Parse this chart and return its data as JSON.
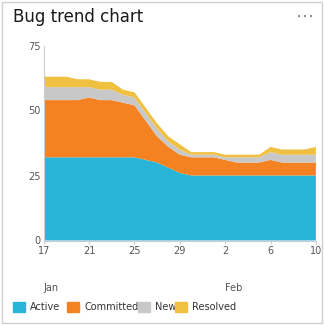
{
  "title": "Bug trend chart",
  "title_fontsize": 12,
  "background_color": "#ffffff",
  "border_color": "#d0d0d0",
  "x_labels": [
    "17",
    "21",
    "25",
    "29",
    "2",
    "6",
    "10"
  ],
  "x_tick_positions": [
    0,
    4,
    8,
    12,
    16,
    20,
    24
  ],
  "x_data": [
    0,
    1,
    2,
    3,
    4,
    5,
    6,
    7,
    8,
    9,
    10,
    11,
    12,
    13,
    14,
    15,
    16,
    17,
    18,
    19,
    20,
    21,
    22,
    23,
    24
  ],
  "active": [
    32,
    32,
    32,
    32,
    32,
    32,
    32,
    32,
    32,
    31,
    30,
    28,
    26,
    25,
    25,
    25,
    25,
    25,
    25,
    25,
    25,
    25,
    25,
    25,
    25
  ],
  "committed": [
    22,
    22,
    22,
    22,
    23,
    22,
    22,
    21,
    20,
    15,
    10,
    8,
    7,
    7,
    7,
    7,
    6,
    5,
    5,
    5,
    6,
    5,
    5,
    5,
    5
  ],
  "new": [
    5,
    5,
    5,
    5,
    4,
    4,
    4,
    3,
    3,
    3,
    3,
    2,
    2,
    1,
    1,
    1,
    1,
    2,
    2,
    2,
    3,
    3,
    3,
    3,
    3
  ],
  "resolved": [
    4,
    4,
    4,
    3,
    3,
    3,
    3,
    2,
    2,
    2,
    2,
    2,
    2,
    1,
    1,
    1,
    1,
    1,
    1,
    1,
    2,
    2,
    2,
    2,
    3
  ],
  "color_active": "#29b5d8",
  "color_committed": "#f58220",
  "color_new": "#c8c8c8",
  "color_resolved": "#f0c040",
  "ylim": [
    0,
    75
  ],
  "yticks": [
    0,
    25,
    50,
    75
  ],
  "jan_tick_idx": 0,
  "feb_tick_idx": 16,
  "legend_items": [
    "Active",
    "Committed",
    "New",
    "Resolved"
  ],
  "legend_colors": [
    "#29b5d8",
    "#f58220",
    "#c8c8c8",
    "#f0c040"
  ]
}
